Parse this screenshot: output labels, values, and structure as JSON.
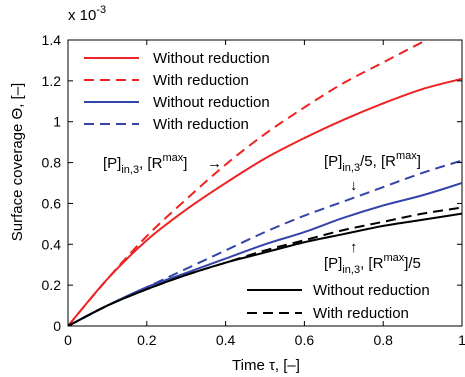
{
  "chart_data": {
    "type": "line",
    "xlabel": "Time τ, [–]",
    "ylabel": "Surface coverage Θ, [–]",
    "y_multiplier_label": "x 10",
    "y_multiplier_exp": "-3",
    "xlim": [
      0,
      1
    ],
    "ylim": [
      0,
      1.4
    ],
    "xticks": [
      "0",
      "0.2",
      "0.4",
      "0.6",
      "0.8",
      "1"
    ],
    "yticks": [
      "0",
      "0.2",
      "0.4",
      "0.6",
      "0.8",
      "1",
      "1.2",
      "1.4"
    ],
    "x": [
      0,
      0.1,
      0.2,
      0.3,
      0.4,
      0.5,
      0.6,
      0.7,
      0.8,
      0.9,
      1.0
    ],
    "series": [
      {
        "name": "Without reduction",
        "group": "[P]in,3, [Rmax]",
        "color": "#ee2222",
        "dash": "solid",
        "values": [
          0,
          0.23,
          0.42,
          0.57,
          0.7,
          0.82,
          0.92,
          1.01,
          1.09,
          1.16,
          1.21
        ]
      },
      {
        "name": "With reduction",
        "group": "[P]in,3, [Rmax]",
        "color": "#ee2222",
        "dash": "dashed",
        "values": [
          0,
          0.23,
          0.44,
          0.62,
          0.79,
          0.94,
          1.07,
          1.19,
          1.29,
          1.39,
          1.48
        ]
      },
      {
        "name": "Without reduction",
        "group": "[P]in,3/5, [Rmax]",
        "color": "#3344aa",
        "dash": "solid",
        "values": [
          0,
          0.1,
          0.19,
          0.26,
          0.33,
          0.4,
          0.46,
          0.53,
          0.59,
          0.64,
          0.7
        ]
      },
      {
        "name": "With reduction",
        "group": "[P]in,3/5, [Rmax]",
        "color": "#3344aa",
        "dash": "dashed",
        "values": [
          0,
          0.1,
          0.19,
          0.28,
          0.37,
          0.46,
          0.54,
          0.61,
          0.68,
          0.75,
          0.81
        ]
      },
      {
        "name": "Without reduction",
        "group": "[P]in,3, [Rmax]/5",
        "color": "#000000",
        "dash": "solid",
        "values": [
          0,
          0.1,
          0.18,
          0.25,
          0.31,
          0.36,
          0.41,
          0.45,
          0.49,
          0.52,
          0.55
        ]
      },
      {
        "name": "With reduction",
        "group": "[P]in,3, [Rmax]/5",
        "color": "#000000",
        "dash": "dashed",
        "values": [
          0,
          0.1,
          0.18,
          0.25,
          0.31,
          0.37,
          0.42,
          0.47,
          0.51,
          0.55,
          0.58
        ]
      }
    ],
    "legend_top": [
      {
        "label": "Without reduction",
        "color": "#ee2222",
        "dash": "solid"
      },
      {
        "label": "With reduction",
        "color": "#ee2222",
        "dash": "dashed"
      },
      {
        "label": "Without reduction",
        "color": "#3344aa",
        "dash": "solid"
      },
      {
        "label": "With reduction",
        "color": "#3344aa",
        "dash": "dashed"
      }
    ],
    "legend_bottom": [
      {
        "label": "Without reduction",
        "color": "#000000",
        "dash": "solid"
      },
      {
        "label": "With reduction",
        "color": "#000000",
        "dash": "dashed"
      }
    ],
    "annotations": {
      "red": {
        "base": "[P]",
        "sub": "in,3",
        "rest": ", [R",
        "sup": "max",
        "end": "]",
        "arrow": "→"
      },
      "blue": {
        "base": "[P]",
        "sub": "in,3",
        "rest": "/5, [R",
        "sup": "max",
        "end": "]",
        "arrow": "↓"
      },
      "black": {
        "base": "[P]",
        "sub": "in,3",
        "rest": ", [R",
        "sup": "max",
        "end": "]/5",
        "arrow": "↑"
      }
    }
  }
}
